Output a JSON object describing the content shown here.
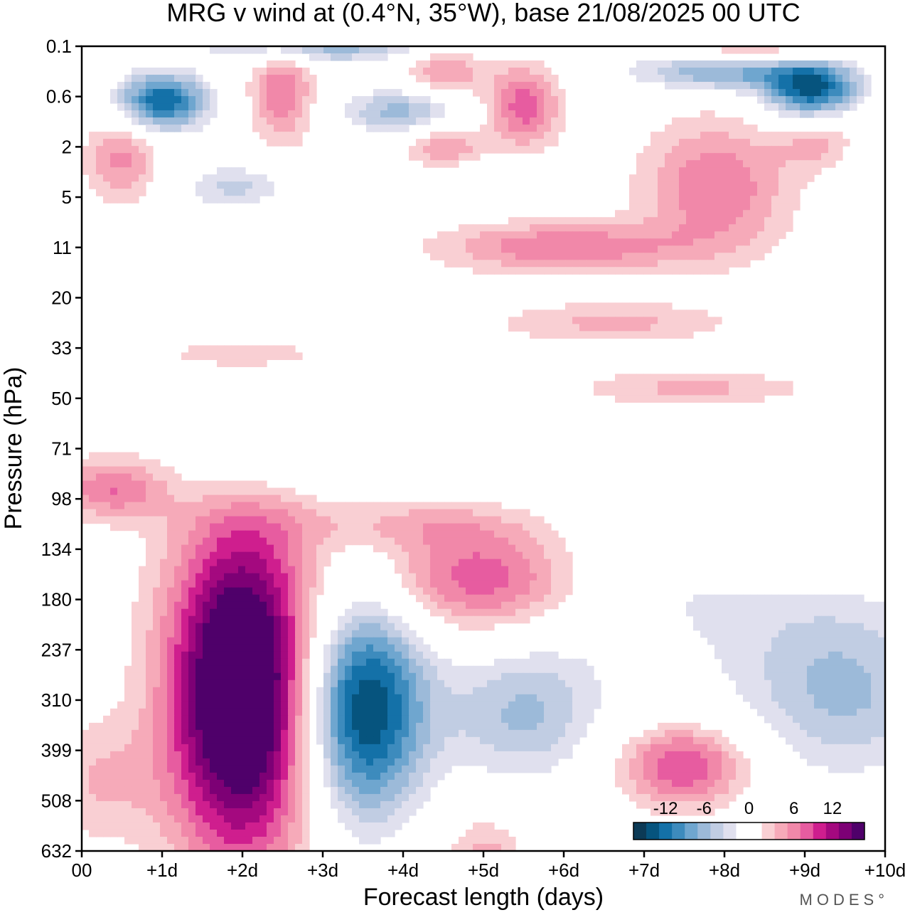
{
  "chart_data": {
    "type": "heatmap",
    "title": "MRG v wind at (0.4°N, 35°W),  base 21/08/2025  00 UTC",
    "xlabel": "Forecast length (days)",
    "ylabel": "Pressure (hPa)",
    "xlim": [
      0,
      10
    ],
    "x_ticks": [
      0,
      1,
      2,
      3,
      4,
      5,
      6,
      7,
      8,
      9,
      10
    ],
    "x_tick_labels": [
      "00",
      "+1d",
      "+2d",
      "+3d",
      "+4d",
      "+5d",
      "+6d",
      "+7d",
      "+8d",
      "+9d",
      "+10d"
    ],
    "y_tick_labels": [
      "0.1",
      "0.6",
      "2",
      "5",
      "11",
      "20",
      "33",
      "50",
      "71",
      "98",
      "134",
      "180",
      "237",
      "310",
      "399",
      "508",
      "632"
    ],
    "colorbar": {
      "ticks": [
        -12,
        -6,
        0,
        6,
        12
      ],
      "tick_labels": [
        "-12",
        "-6",
        "0",
        "6",
        "12"
      ],
      "levels": [
        -15,
        -13.5,
        -12,
        -10.5,
        -9,
        -7.5,
        -6,
        -4.5,
        -3,
        -1.5,
        1.5,
        3,
        4.5,
        6,
        7.5,
        9,
        10.5,
        12,
        13.5,
        15
      ],
      "colors": [
        "#0c3a56",
        "#06547e",
        "#1471a8",
        "#3d8bbd",
        "#6fa6cf",
        "#9cbad9",
        "#c1cde3",
        "#e0e0ee",
        "#ffffff",
        "#ffffff",
        "#f9cfd3",
        "#f6aab9",
        "#f188a9",
        "#e75ca0",
        "#cf1e8e",
        "#a4097f",
        "#7d0075",
        "#4f006a"
      ]
    },
    "features": [
      {
        "sign": "pos",
        "day": 2.0,
        "level_index": 12.8,
        "peak": 18,
        "ws": 0.9,
        "wl": 3.3
      },
      {
        "sign": "neg",
        "day": 3.5,
        "level_index": 13.2,
        "peak": -14,
        "ws": 0.8,
        "wl": 2.2
      },
      {
        "sign": "neg",
        "day": 5.5,
        "level_index": 13.3,
        "peak": -6,
        "ws": 1.0,
        "wl": 1.4
      },
      {
        "sign": "neg",
        "day": 9.5,
        "level_index": 12.9,
        "peak": -6,
        "ws": 1.3,
        "wl": 1.8
      },
      {
        "sign": "neg",
        "day": 7.5,
        "level_index": 10.8,
        "peak": -3,
        "ws": 2.5,
        "wl": 2.0
      },
      {
        "sign": "pos",
        "day": 5.0,
        "level_index": 10.6,
        "peak": 8,
        "ws": 1.3,
        "wl": 1.1
      },
      {
        "sign": "pos",
        "day": 7.5,
        "level_index": 14.3,
        "peak": 8,
        "ws": 0.8,
        "wl": 0.8
      },
      {
        "sign": "pos",
        "day": 0.4,
        "level_index": 8.8,
        "peak": 6,
        "ws": 0.7,
        "wl": 0.6
      },
      {
        "sign": "pos",
        "day": 5.0,
        "level_index": 16.2,
        "peak": 4,
        "ws": 0.5,
        "wl": 0.9
      },
      {
        "sign": "pos",
        "day": 0.2,
        "level_index": 14.6,
        "peak": 3,
        "ws": 0.8,
        "wl": 1.2
      },
      {
        "sign": "pos",
        "day": 4.0,
        "level_index": 9.5,
        "peak": 3,
        "ws": 1.5,
        "wl": 0.5
      },
      {
        "sign": "pos",
        "day": 9.0,
        "level_index": 9.9,
        "peak": 3,
        "ws": 1.3,
        "wl": 0.7
      },
      {
        "sign": "neg",
        "day": 2.0,
        "level_index": 8.5,
        "peak": -2.5,
        "ws": 1.0,
        "wl": 0.6
      },
      {
        "sign": "pos",
        "day": 6.0,
        "level_index": 4.0,
        "peak": 6,
        "ws": 1.5,
        "wl": 0.5
      },
      {
        "sign": "pos",
        "day": 7.9,
        "level_index": 2.8,
        "peak": 6,
        "ws": 0.9,
        "wl": 1.3
      },
      {
        "sign": "pos",
        "day": 9.3,
        "level_index": 2.0,
        "peak": 8,
        "ws": 0.6,
        "wl": 0.7
      },
      {
        "sign": "neg",
        "day": 1.0,
        "level_index": 1.1,
        "peak": -12,
        "ws": 0.6,
        "wl": 0.6
      },
      {
        "sign": "neg",
        "day": 4.0,
        "level_index": 1.3,
        "peak": -7,
        "ws": 0.8,
        "wl": 0.5
      },
      {
        "sign": "neg",
        "day": 9.1,
        "level_index": 0.9,
        "peak": -12,
        "ws": 0.6,
        "wl": 0.6
      },
      {
        "sign": "neg",
        "day": 8.0,
        "level_index": 0.5,
        "peak": -8,
        "ws": 1.2,
        "wl": 0.4
      },
      {
        "sign": "neg",
        "day": 9.6,
        "level_index": 2.2,
        "peak": -6,
        "ws": 0.8,
        "wl": 0.7
      },
      {
        "sign": "neg",
        "day": 1.9,
        "level_index": 2.8,
        "peak": -5,
        "ws": 0.7,
        "wl": 0.5
      },
      {
        "sign": "neg",
        "day": 3.0,
        "level_index": 0.0,
        "peak": -7,
        "ws": 1.5,
        "wl": 0.35
      },
      {
        "sign": "pos",
        "day": 5.5,
        "level_index": 1.2,
        "peak": 7,
        "ws": 0.45,
        "wl": 0.8
      },
      {
        "sign": "pos",
        "day": 2.5,
        "level_index": 0.9,
        "peak": 6,
        "ws": 0.4,
        "wl": 1.0
      },
      {
        "sign": "pos",
        "day": 4.5,
        "level_index": 0.5,
        "peak": 5,
        "ws": 0.5,
        "wl": 0.6
      },
      {
        "sign": "pos",
        "day": 4.5,
        "level_index": 2.0,
        "peak": 5,
        "ws": 0.5,
        "wl": 0.5
      },
      {
        "sign": "pos",
        "day": 0.5,
        "level_index": 2.2,
        "peak": 5,
        "ws": 0.45,
        "wl": 0.9
      },
      {
        "sign": "pos",
        "day": 8.4,
        "level_index": 0.1,
        "peak": 5,
        "ws": 0.9,
        "wl": 0.3
      },
      {
        "sign": "pos",
        "day": 6.6,
        "level_index": 5.5,
        "peak": 3.5,
        "ws": 1.4,
        "wl": 0.4
      },
      {
        "sign": "pos",
        "day": 7.6,
        "level_index": 6.8,
        "peak": 3.5,
        "ws": 1.4,
        "wl": 0.35
      },
      {
        "sign": "pos",
        "day": 2.0,
        "level_index": 6.1,
        "peak": 2,
        "ws": 1.2,
        "wl": 0.3
      },
      {
        "sign": "neg",
        "day": 6.0,
        "level_index": 8.0,
        "peak": -2,
        "ws": 1.6,
        "wl": 0.4
      },
      {
        "sign": "neg",
        "day": 10.0,
        "level_index": 5.2,
        "peak": -2,
        "ws": 0.8,
        "wl": 1.3
      },
      {
        "sign": "neg",
        "day": 4.7,
        "level_index": 2.7,
        "peak": -2.5,
        "ws": 1.0,
        "wl": 0.4
      }
    ]
  }
}
